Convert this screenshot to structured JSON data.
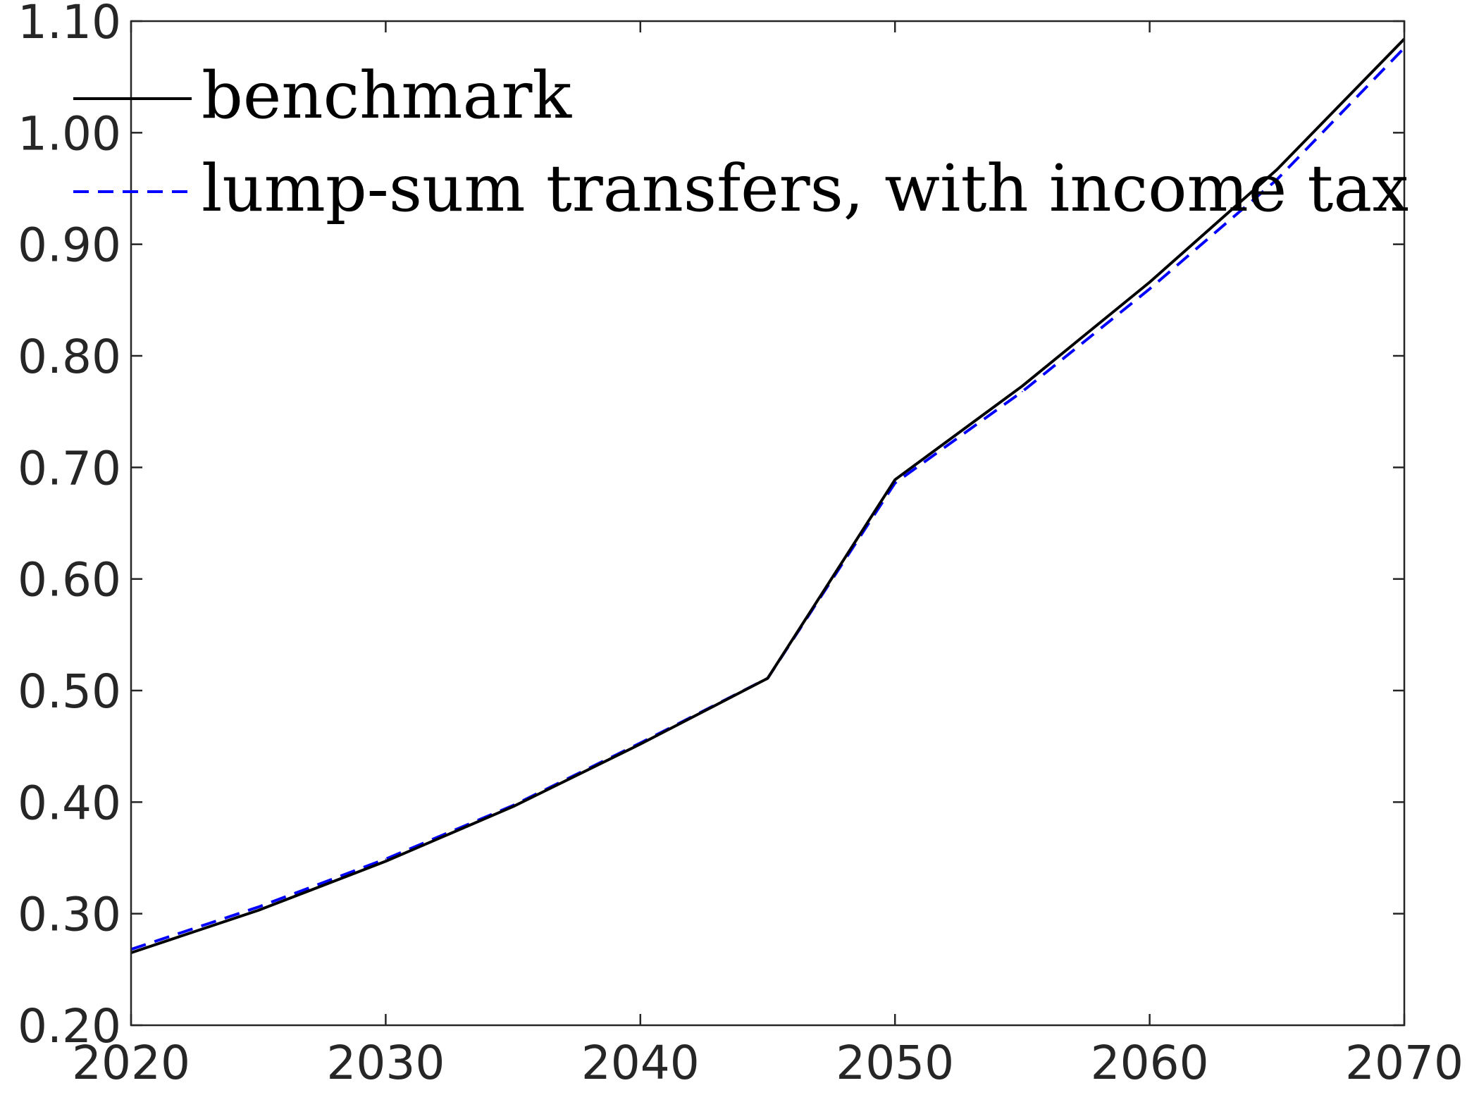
{
  "chart_data": {
    "type": "line",
    "title": "",
    "xlabel": "",
    "ylabel": "",
    "xlim": [
      2020,
      2070
    ],
    "ylim": [
      0.2,
      1.1
    ],
    "x_ticks": [
      2020,
      2030,
      2040,
      2050,
      2060,
      2070
    ],
    "x_tick_labels": [
      "2020",
      "2030",
      "2040",
      "2050",
      "2060",
      "2070"
    ],
    "y_ticks": [
      0.2,
      0.3,
      0.4,
      0.5,
      0.6,
      0.7,
      0.8,
      0.9,
      1.0,
      1.1
    ],
    "y_tick_labels": [
      "0.20",
      "0.30",
      "0.40",
      "0.50",
      "0.60",
      "0.70",
      "0.80",
      "0.90",
      "1.00",
      "1.10"
    ],
    "grid": false,
    "legend_position": "top-left",
    "x": [
      2020,
      2025,
      2030,
      2035,
      2040,
      2045,
      2050,
      2055,
      2060,
      2065,
      2070
    ],
    "series": [
      {
        "name": "benchmark",
        "color": "#000000",
        "style": "solid",
        "values": [
          0.265,
          0.303,
          0.347,
          0.396,
          0.452,
          0.511,
          0.689,
          0.773,
          0.866,
          0.967,
          1.084
        ]
      },
      {
        "name": "lump-sum transfers, with income tax",
        "color": "#0000ff",
        "style": "dashed",
        "values": [
          0.268,
          0.306,
          0.349,
          0.397,
          0.453,
          0.511,
          0.686,
          0.768,
          0.86,
          0.958,
          1.076
        ]
      }
    ]
  }
}
